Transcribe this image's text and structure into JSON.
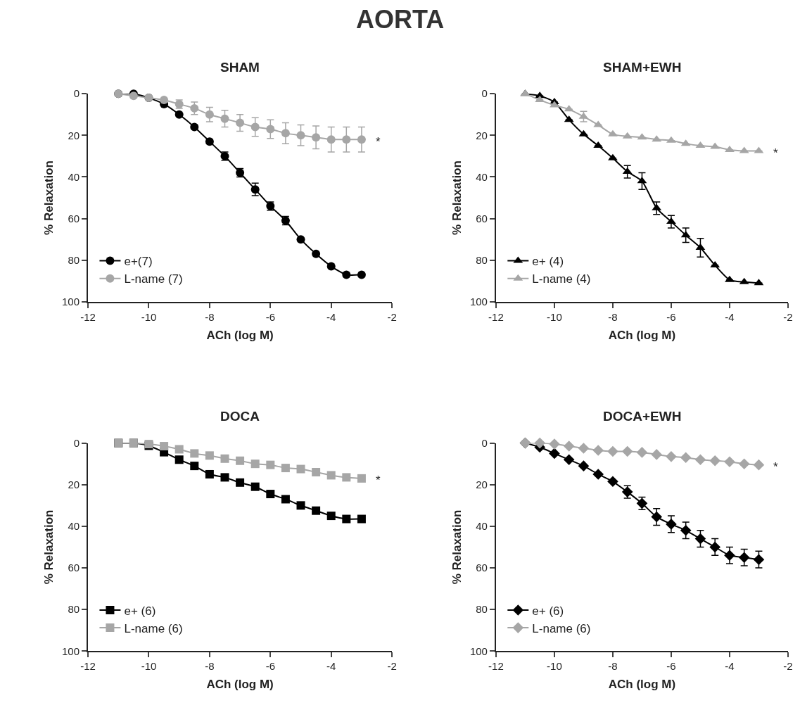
{
  "chart_data": [
    {
      "type": "line",
      "title": "SHAM",
      "annotations": [
        "AORTA",
        "*"
      ],
      "xlabel": "ACh (log M)",
      "ylabel": "% Relaxation",
      "marker": "circle",
      "legend": "bottom left",
      "xlim": [
        -12,
        -2
      ],
      "xticks": [
        -12,
        -10,
        -8,
        -6,
        -4,
        -2
      ],
      "ylim": [
        100,
        0
      ],
      "yticks": [
        0,
        20,
        40,
        60,
        80,
        100
      ],
      "x": [
        -11,
        -10.5,
        -10,
        -9.5,
        -9,
        -8.5,
        -8,
        -7.5,
        -7,
        -6.5,
        -6,
        -5.5,
        -5,
        -4.5,
        -4,
        -3.5,
        -3
      ],
      "series": [
        {
          "name": "e+(7)",
          "color": "#000000",
          "values": [
            0,
            0,
            2,
            5,
            10,
            16,
            23,
            30,
            38,
            46,
            54,
            61,
            70,
            77,
            83,
            87,
            87
          ],
          "errors": [
            null,
            null,
            null,
            null,
            null,
            null,
            1,
            2,
            2,
            3,
            2,
            2,
            null,
            null,
            null,
            null,
            null
          ]
        },
        {
          "name": "L-name (7)",
          "color": "#a6a6a6",
          "values": [
            0,
            1,
            2,
            3,
            5,
            7,
            10,
            12,
            14,
            16,
            17,
            19,
            20,
            21,
            22,
            22,
            22
          ],
          "errors": [
            null,
            null,
            null,
            null,
            2,
            3,
            3.5,
            4,
            4,
            4.5,
            4.5,
            5,
            5,
            5.5,
            6,
            6,
            6
          ]
        }
      ]
    },
    {
      "type": "line",
      "title": "SHAM+EWH",
      "annotations": [
        "*"
      ],
      "xlabel": "ACh (log M)",
      "ylabel": "% Relaxation",
      "marker": "triangle",
      "legend": "bottom left",
      "xlim": [
        -12,
        -2
      ],
      "xticks": [
        -12,
        -10,
        -8,
        -6,
        -4,
        -2
      ],
      "ylim": [
        100,
        0
      ],
      "yticks": [
        0,
        20,
        40,
        60,
        80,
        100
      ],
      "x": [
        -11,
        -10.5,
        -10,
        -9.5,
        -9,
        -8.5,
        -8,
        -7.5,
        -7,
        -6.5,
        -6,
        -5.5,
        -5,
        -4.5,
        -4,
        -3.5,
        -3
      ],
      "series": [
        {
          "name": "e+ (4)",
          "color": "#000000",
          "values": [
            0,
            1,
            4,
            12.5,
            19.5,
            25,
            31,
            37.5,
            42,
            55,
            61.5,
            68,
            74,
            82.5,
            89.5,
            90.5,
            91
          ],
          "errors": [
            null,
            null,
            null,
            null,
            null,
            null,
            null,
            3,
            4,
            3,
            3,
            3.5,
            4.5,
            null,
            null,
            null,
            null
          ]
        },
        {
          "name": "L-name (4)",
          "color": "#a6a6a6",
          "values": [
            0,
            3,
            5.5,
            7.5,
            11,
            15,
            19.5,
            20.5,
            21,
            22,
            22.5,
            24,
            25,
            25.5,
            27,
            27.5,
            27.5
          ],
          "errors": [
            null,
            null,
            null,
            null,
            2.5,
            null,
            null,
            null,
            null,
            null,
            null,
            null,
            null,
            null,
            null,
            null,
            null
          ]
        }
      ]
    },
    {
      "type": "line",
      "title": "DOCA",
      "annotations": [
        "*"
      ],
      "xlabel": "ACh (log M)",
      "ylabel": "% Relaxation",
      "marker": "square",
      "legend": "bottom left",
      "xlim": [
        -12,
        -2
      ],
      "xticks": [
        -12,
        -10,
        -8,
        -6,
        -4,
        -2
      ],
      "ylim": [
        100,
        0
      ],
      "yticks": [
        0,
        20,
        40,
        60,
        80,
        100
      ],
      "x": [
        -11,
        -10.5,
        -10,
        -9.5,
        -9,
        -8.5,
        -8,
        -7.5,
        -7,
        -6.5,
        -6,
        -5.5,
        -5,
        -4.5,
        -4,
        -3.5,
        -3
      ],
      "series": [
        {
          "name": "e+ (6)",
          "color": "#000000",
          "values": [
            0,
            0,
            1.3,
            4.4,
            8,
            11,
            15,
            16.5,
            19,
            21,
            24.5,
            27,
            30,
            32.5,
            35,
            36.5,
            36.5
          ]
        },
        {
          "name": "L-name (6)",
          "color": "#a6a6a6",
          "values": [
            0,
            0,
            0.5,
            1.5,
            3,
            5,
            6,
            7.5,
            8.5,
            10,
            10.5,
            12,
            12.5,
            14,
            15.5,
            16.5,
            17
          ]
        }
      ]
    },
    {
      "type": "line",
      "title": "DOCA+EWH",
      "annotations": [
        "*"
      ],
      "xlabel": "ACh (log M)",
      "ylabel": "% Relaxation",
      "marker": "diamond",
      "legend": "bottom left",
      "xlim": [
        -12,
        -2
      ],
      "xticks": [
        -12,
        -10,
        -8,
        -6,
        -4,
        -2
      ],
      "ylim": [
        100,
        0
      ],
      "yticks": [
        0,
        20,
        40,
        60,
        80,
        100
      ],
      "x": [
        -11,
        -10.5,
        -10,
        -9.5,
        -9,
        -8.5,
        -8,
        -7.5,
        -7,
        -6.5,
        -6,
        -5.5,
        -5,
        -4.5,
        -4,
        -3.5,
        -3
      ],
      "series": [
        {
          "name": "e+ (6)",
          "color": "#000000",
          "values": [
            0,
            2,
            5,
            8,
            11,
            15,
            18.5,
            23.5,
            29,
            35.5,
            39,
            42,
            46,
            50,
            54,
            55,
            56
          ],
          "errors": [
            null,
            null,
            null,
            null,
            null,
            null,
            null,
            3,
            3,
            4,
            4,
            4,
            4,
            4,
            4,
            4,
            4
          ]
        },
        {
          "name": "L-name (6)",
          "color": "#a6a6a6",
          "values": [
            0,
            0,
            0.5,
            1.5,
            2.5,
            3.5,
            4,
            4,
            4.5,
            5.5,
            6.5,
            7,
            8,
            8.5,
            9,
            10,
            10.5
          ]
        }
      ]
    }
  ]
}
